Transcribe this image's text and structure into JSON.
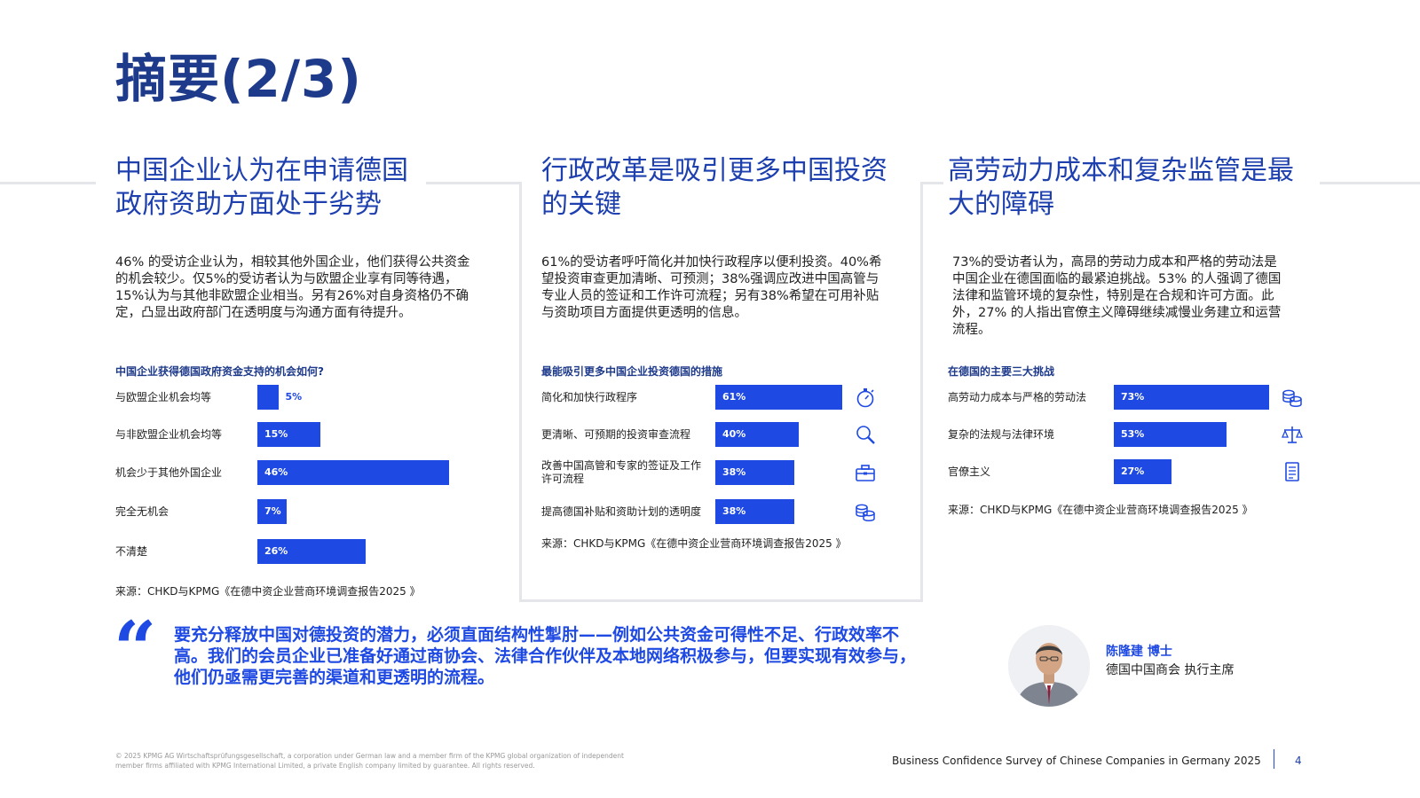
{
  "page": {
    "title": "摘要(2/3)"
  },
  "columns": [
    {
      "heading": "中国企业认为在申请德国政府资助方面处于劣势",
      "body": "46% 的受访企业认为，相较其他外国企业，他们获得公共资金的机会较少。仅5%的受访者认为与欧盟企业享有同等待遇，15%认为与其他非欧盟企业相当。另有26%对自身资格仍不确定，凸显出政府部门在透明度与沟通方面有待提升。",
      "chart_title": "中国企业获得德国政府资金支持的机会如何?",
      "source": "来源：CHKD与KPMG《在德中资企业营商环境调查报告2025 》"
    },
    {
      "heading": "行政改革是吸引更多中国投资的关键",
      "body": "61%的受访者呼吁简化并加快行政程序以便利投资。40%希望投资审查更加清晰、可预测；38%强调应改进中国高管与专业人员的签证和工作许可流程；另有38%希望在可用补贴与资助项目方面提供更透明的信息。",
      "chart_title": "最能吸引更多中国企业投资德国的措施",
      "source": "来源：CHKD与KPMG《在德中资企业营商环境调查报告2025 》"
    },
    {
      "heading": "高劳动力成本和复杂监管是最大的障碍",
      "body": "73%的受访者认为，高昂的劳动力成本和严格的劳动法是中国企业在德国面临的最紧迫挑战。53% 的人强调了德国法律和监管环境的复杂性，特别是在合规和许可方面。此外，27% 的人指出官僚主义障碍继续减慢业务建立和运营流程。",
      "chart_title": "在德国的主要三大挑战",
      "source": "来源：CHKD与KPMG《在德中资企业营商环境调查报告2025 》"
    }
  ],
  "chart_data": [
    {
      "type": "bar",
      "orientation": "horizontal",
      "title": "中国企业获得德国政府资金支持的机会如何?",
      "categories": [
        "与欧盟企业机会均等",
        "与非欧盟企业机会均等",
        "机会少于其他外国企业",
        "完全无机会",
        "不清楚"
      ],
      "values": [
        5,
        15,
        46,
        7,
        26
      ],
      "labels": [
        "5%",
        "15%",
        "46%",
        "7%",
        "26%"
      ],
      "unit": "%",
      "color": "#1e49e2",
      "xlim": [
        0,
        100
      ],
      "grid": false
    },
    {
      "type": "bar",
      "orientation": "horizontal",
      "title": "最能吸引更多中国企业投资德国的措施",
      "categories": [
        "简化和加快行政程序",
        "更清晰、可预期的投资审查流程",
        "改善中国高管和专家的签证及工作许可流程",
        "提高德国补贴和资助计划的透明度"
      ],
      "values": [
        61,
        40,
        38,
        38
      ],
      "labels": [
        "61%",
        "40%",
        "38%",
        "38%"
      ],
      "icons": [
        "stopwatch-icon",
        "magnifier-icon",
        "briefcase-icon",
        "coins-icon"
      ],
      "unit": "%",
      "color": "#1e49e2",
      "xlim": [
        0,
        100
      ],
      "grid": false
    },
    {
      "type": "bar",
      "orientation": "horizontal",
      "title": "在德国的主要三大挑战",
      "categories": [
        "高劳动力成本与严格的劳动法",
        "复杂的法规与法律环境",
        "官僚主义"
      ],
      "values": [
        73,
        53,
        27
      ],
      "labels": [
        "73%",
        "53%",
        "27%"
      ],
      "icons": [
        "coins-icon",
        "scales-icon",
        "document-icon"
      ],
      "unit": "%",
      "color": "#1e49e2",
      "xlim": [
        0,
        100
      ],
      "grid": false
    }
  ],
  "quote": {
    "mark": "“",
    "text": "要充分释放中国对德投资的潜力，必须直面结构性掣肘——例如公共资金可得性不足、行政效率不高。我们的会员企业已准备好通过商协会、法律合作伙伴及本地网络积极参与，但要实现有效参与，他们仍亟需更完善的渠道和更透明的流程。",
    "speaker_name": "陈隆建 博士",
    "speaker_role": "德国中国商会 执行主席"
  },
  "footer": {
    "copyright": "© 2025 KPMG AG Wirtschaftsprüfungsgesellschaft, a corporation under German law and a member firm of the KPMG global organization of independent member firms affiliated with KPMG International Limited, a private English company limited by guarantee. All rights reserved.",
    "report_title": "Business Confidence Survey of Chinese Companies in Germany 2025",
    "page_number": "4"
  }
}
